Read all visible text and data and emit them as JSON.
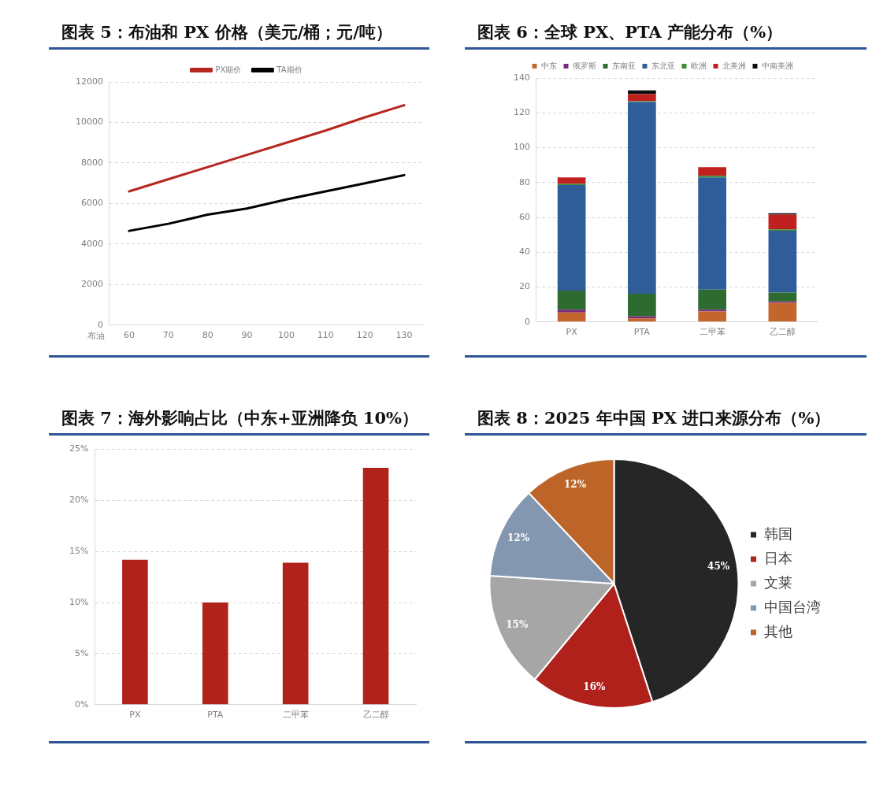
{
  "chart_data": [
    {
      "type": "line",
      "title": "图表 5：布油和 PX 价格（美元/桶；元/吨）",
      "xlabel": "布油",
      "categories": [
        "60",
        "70",
        "80",
        "90",
        "100",
        "110",
        "120",
        "130"
      ],
      "series": [
        {
          "name": "PX期价",
          "color": "#b5271f",
          "values": [
            6600,
            7200,
            7800,
            8400,
            9000,
            9600,
            10250,
            10850
          ]
        },
        {
          "name": "TA期价",
          "color": "#000000",
          "values": [
            4650,
            5000,
            5450,
            5750,
            6200,
            6600,
            7000,
            7400
          ]
        }
      ],
      "ylim": [
        0,
        12000
      ],
      "yticks": [
        0,
        2000,
        4000,
        6000,
        8000,
        10000,
        12000
      ],
      "grid": "y",
      "legend": "top",
      "marker": "none",
      "line_style": "solid"
    },
    {
      "type": "bar",
      "title": "图表 6：全球 PX、PTA 产能分布（%）",
      "categories": [
        "PX",
        "PTA",
        "二甲苯",
        "乙二醇"
      ],
      "stacked": true,
      "series": [
        {
          "name": "中东",
          "color": "#c5652e",
          "values": [
            5.5,
            2,
            6,
            11
          ]
        },
        {
          "name": "俄罗斯",
          "color": "#7b2a7b",
          "values": [
            1.5,
            1.2,
            1,
            0.8
          ]
        },
        {
          "name": "东南亚",
          "color": "#2e6b30",
          "values": [
            11,
            13,
            11.5,
            5
          ]
        },
        {
          "name": "东北亚",
          "color": "#2e5d9a",
          "values": [
            60.5,
            110,
            64.5,
            35.5
          ]
        },
        {
          "name": "欧洲",
          "color": "#3d8b37",
          "values": [
            0.7,
            0.5,
            0.8,
            0.8
          ]
        },
        {
          "name": "北美洲",
          "color": "#c0211f",
          "values": [
            3.8,
            4,
            5,
            8.5
          ]
        },
        {
          "name": "中南美洲",
          "color": "#0d0d0d",
          "values": [
            0,
            2.2,
            0,
            0.8
          ]
        }
      ],
      "ylim": [
        0,
        140
      ],
      "yticks": [
        0,
        20,
        40,
        60,
        80,
        100,
        120,
        140
      ],
      "grid": "y",
      "legend": "top"
    },
    {
      "type": "bar",
      "title": "图表 7：海外影响占比（中东+亚洲降负 10%）",
      "categories": [
        "PX",
        "PTA",
        "二甲苯",
        "乙二醇"
      ],
      "values": [
        14.2,
        10,
        13.9,
        23.2
      ],
      "color": "#b0231b",
      "ylim": [
        0,
        25
      ],
      "yticks": [
        {
          "value": 0,
          "label": "0%"
        },
        {
          "value": 5,
          "label": "5%"
        },
        {
          "value": 10,
          "label": "10%"
        },
        {
          "value": 15,
          "label": "15%"
        },
        {
          "value": 20,
          "label": "20%"
        },
        {
          "value": 25,
          "label": "25%"
        }
      ],
      "grid": "y"
    },
    {
      "type": "pie",
      "title": "图表 8：2025 年中国 PX 进口来源分布（%）",
      "categories": [
        "韩国",
        "日本",
        "文莱",
        "中国台湾",
        "其他"
      ],
      "values": [
        45,
        16,
        15,
        12,
        12
      ],
      "colors": [
        "#262626",
        "#b0211b",
        "#a6a6a6",
        "#8497b0",
        "#bd6428"
      ],
      "value_labels": [
        "45%",
        "16%",
        "15%",
        "12%",
        "12%"
      ],
      "legend": "right"
    }
  ]
}
